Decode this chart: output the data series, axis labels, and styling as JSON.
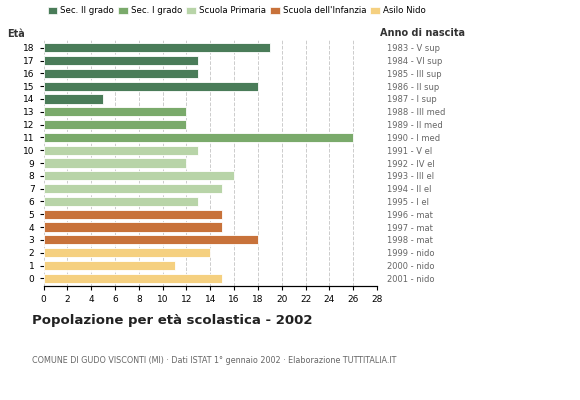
{
  "ages": [
    18,
    17,
    16,
    15,
    14,
    13,
    12,
    11,
    10,
    9,
    8,
    7,
    6,
    5,
    4,
    3,
    2,
    1,
    0
  ],
  "values": [
    19,
    13,
    13,
    18,
    5,
    12,
    12,
    26,
    13,
    12,
    16,
    15,
    13,
    15,
    15,
    18,
    14,
    11,
    15
  ],
  "right_labels": [
    "1983 - V sup",
    "1984 - VI sup",
    "1985 - III sup",
    "1986 - II sup",
    "1987 - I sup",
    "1988 - III med",
    "1989 - II med",
    "1990 - I med",
    "1991 - V el",
    "1992 - IV el",
    "1993 - III el",
    "1994 - II el",
    "1995 - I el",
    "1996 - mat",
    "1997 - mat",
    "1998 - mat",
    "1999 - nido",
    "2000 - nido",
    "2001 - nido"
  ],
  "bar_colors": [
    "#4a7c59",
    "#4a7c59",
    "#4a7c59",
    "#4a7c59",
    "#4a7c59",
    "#7aaa6b",
    "#7aaa6b",
    "#7aaa6b",
    "#b8d4a8",
    "#b8d4a8",
    "#b8d4a8",
    "#b8d4a8",
    "#b8d4a8",
    "#c8723a",
    "#c8723a",
    "#c8723a",
    "#f5d080",
    "#f5d080",
    "#f5d080"
  ],
  "legend_labels": [
    "Sec. II grado",
    "Sec. I grado",
    "Scuola Primaria",
    "Scuola dell'Infanzia",
    "Asilo Nido"
  ],
  "legend_colors": [
    "#4a7c59",
    "#7aaa6b",
    "#b8d4a8",
    "#c8723a",
    "#f5d080"
  ],
  "title": "Popolazione per età scolastica - 2002",
  "subtitle": "COMUNE DI GUDO VISCONTI (MI) · Dati ISTAT 1° gennaio 2002 · Elaborazione TUTTITALIA.IT",
  "label_left": "Età",
  "label_right": "Anno di nascita",
  "xlim": [
    0,
    28
  ],
  "xticks": [
    0,
    2,
    4,
    6,
    8,
    10,
    12,
    14,
    16,
    18,
    20,
    22,
    24,
    26,
    28
  ],
  "background_color": "#ffffff",
  "grid_color": "#cccccc",
  "bar_height": 0.72
}
